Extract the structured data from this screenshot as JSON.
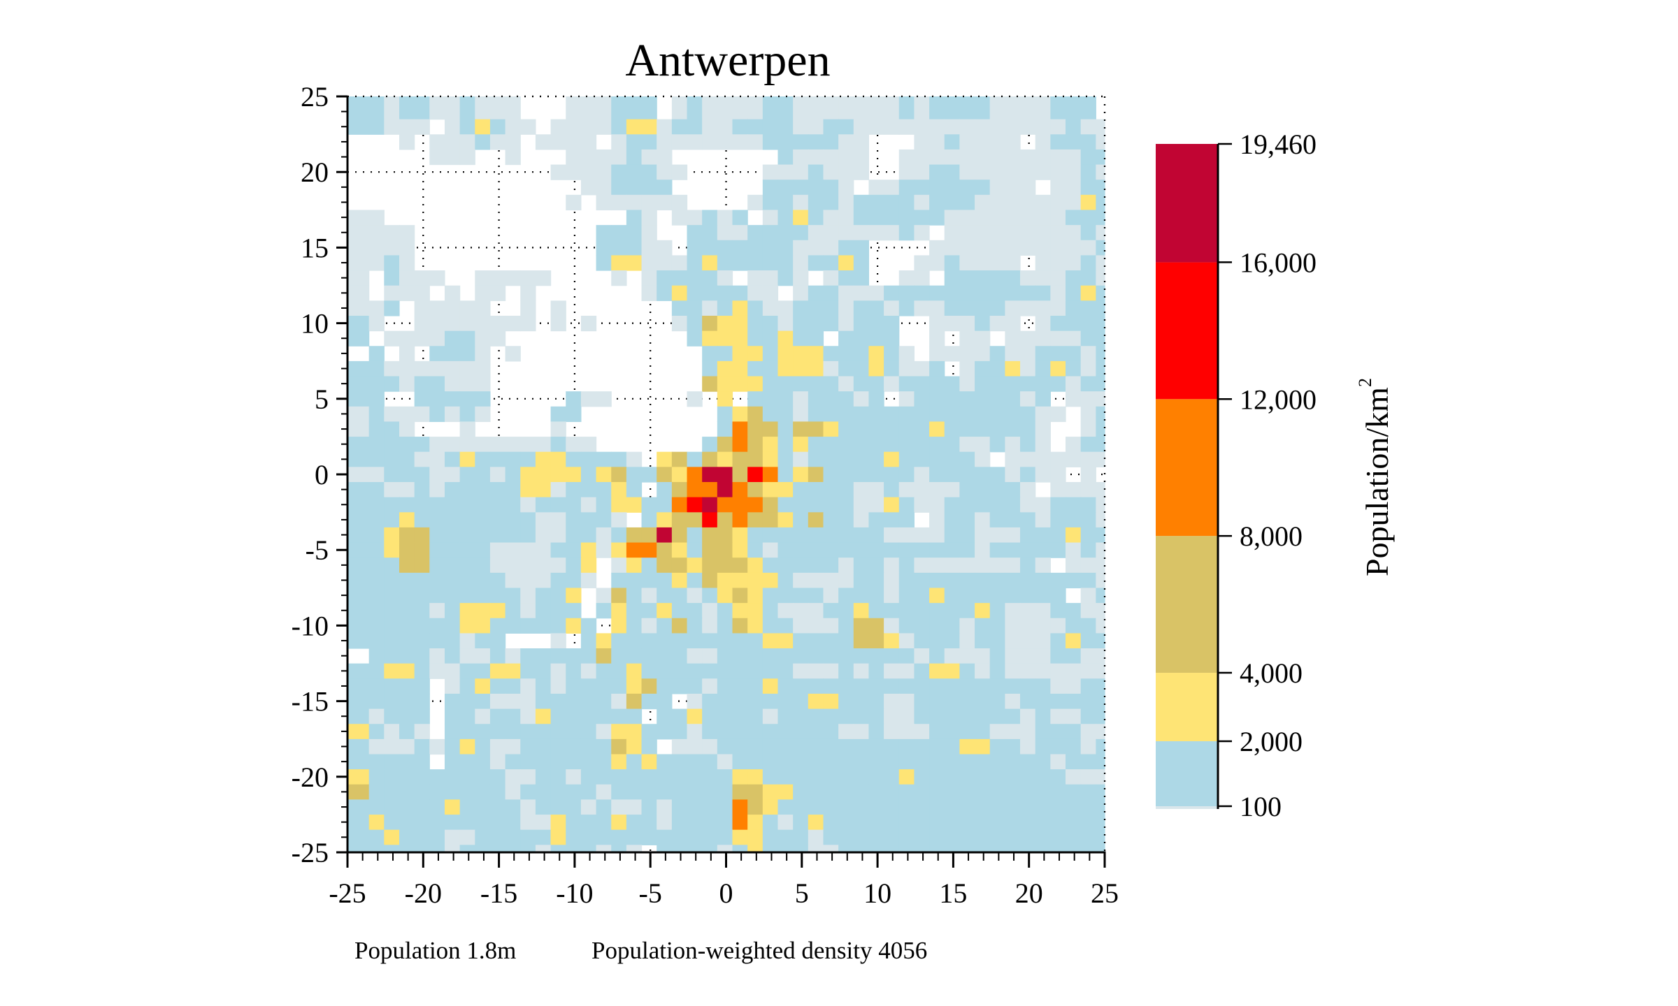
{
  "chart_data": {
    "type": "heatmap",
    "title": "Antwerpen",
    "xlim": [
      -25,
      25
    ],
    "ylim": [
      -25,
      25
    ],
    "x_ticks": [
      "-25",
      "-20",
      "-15",
      "-10",
      "-5",
      "0",
      "5",
      "10",
      "15",
      "20",
      "25"
    ],
    "y_ticks": [
      "25",
      "20",
      "15",
      "10",
      "5",
      "0",
      "-5",
      "-10",
      "-15",
      "-20",
      "-25"
    ],
    "grid": "dotted lines every 5 units, visible only where there is no data",
    "bins": [
      {
        "code": 0,
        "min": null,
        "max": null,
        "color": "#ffffff"
      },
      {
        "code": 1,
        "min": 0,
        "max": 100,
        "color": "#d9e6eb"
      },
      {
        "code": 2,
        "min": 100,
        "max": 2000,
        "color": "#add8e6"
      },
      {
        "code": 3,
        "min": 2000,
        "max": 4000,
        "color": "#fee475"
      },
      {
        "code": 4,
        "min": 4000,
        "max": 8000,
        "color": "#d9c366"
      },
      {
        "code": 5,
        "min": 8000,
        "max": 12000,
        "color": "#ff8000"
      },
      {
        "code": 6,
        "min": 12000,
        "max": 16000,
        "color": "#ff0000"
      },
      {
        "code": 7,
        "min": 16000,
        "max": 19460,
        "color": "#c10533"
      }
    ],
    "rows_top_to_bottom": [
      "22122112111000111222012111122111111121222211112220",
      "22111012321101111233122112222112211111111111111211",
      "00010111211011110122111111122222110001121111012221",
      "00000111001000111121100000002111110011111111111122",
      "00000000000001111222110000011121110011221111111121",
      "00000000000000011222200000022222101122222211101122",
      "00000000000000101111110000122122122221222111111132",
      "11000000000000000021011212012321122222211111111222",
      "11110000000000002221002211222211111121011111111121",
      "11110000000000002221102222222111220000111111111112",
      "11210000000000002331112322222122320001121111011121",
      "10211100111110000101222210112101220011022222111221",
      "10111010110100000001232222110122111222222222221232",
      "11201111100101000000022123211222122121122221111222",
      "21001111111101010000012433221222122200111211012222",
      "20111122110000000000002333223220222200101101111122",
      "02010222101000000000000223323332223210111121122212",
      "22111111100000000000000233223331223211201223123212",
      "22212211100000000000000433322222122122221222222122",
      "22002222200000211000001030222122212012222222120111",
      "12111212100002200000000023422122222222222222211012",
      "12210001000001000000000025442443222222322222210012",
      "22222111111112110000000245432322222222221121210122",
      "22221123222233222210342434432122222322222101111111",
      "11222112212333323422435774652342222221222221211010",
      "22112122222331222320245575433222211211112222101111",
      "22222222222122212332256755542222211321122222112221",
      "22232222222211222102344645443242212220122122212221",
      "22344222222211221244742443222222222111122111222322",
      "22344222211112231355432443212222222222222122222121",
      "22244222211111230132443444322222122121111111210111",
      "22222222221112210222232433332111122122222222222221",
      "22222222222122301421221234322221222122322222222012",
      "22222123332122202322322123321112232222222321112211",
      "22222223322222320321242124322111244122221221111221",
      "22222221220001023222222222233222244312221221112322",
      "02222121121222224222221122222222222221211121112211",
      "22332112233221212232222222222111212112332121111111",
      "22222012322121222234222122232222222222222222221122",
      "22222022211122222142201222222233222112222221222222",
      "21222022122132222220223222212222222112222222121122",
      "32121022222222221332221222222222112111222211122211",
      "21112123211222222432011122222222222222223322122212",
      "22222022212222222323222212222222222222222222221222",
      "32222222221122122222222223322222222232222222222111",
      "42222222221222221222222224433222222222222222222222",
      "22222232222122212112122225432222222222222222222222",
      "23222222222113222322122225321232222222222222222222",
      "22322211222223222222222223322212222222222222222222",
      "22222212222212221210222212322211222222222222222222"
    ],
    "colorbar": {
      "ticks": [
        {
          "value": 19460,
          "label": "19,460"
        },
        {
          "value": 16000,
          "label": "16,000"
        },
        {
          "value": 12000,
          "label": "12,000"
        },
        {
          "value": 8000,
          "label": "8,000"
        },
        {
          "value": 4000,
          "label": "4,000"
        },
        {
          "value": 2000,
          "label": "2,000"
        },
        {
          "value": 100,
          "label": "100"
        }
      ],
      "label_text": "Population/km",
      "label_superscript": "2"
    }
  },
  "footer": {
    "population": "Population 1.8m",
    "weighted_density": "Population-weighted density 4056"
  }
}
